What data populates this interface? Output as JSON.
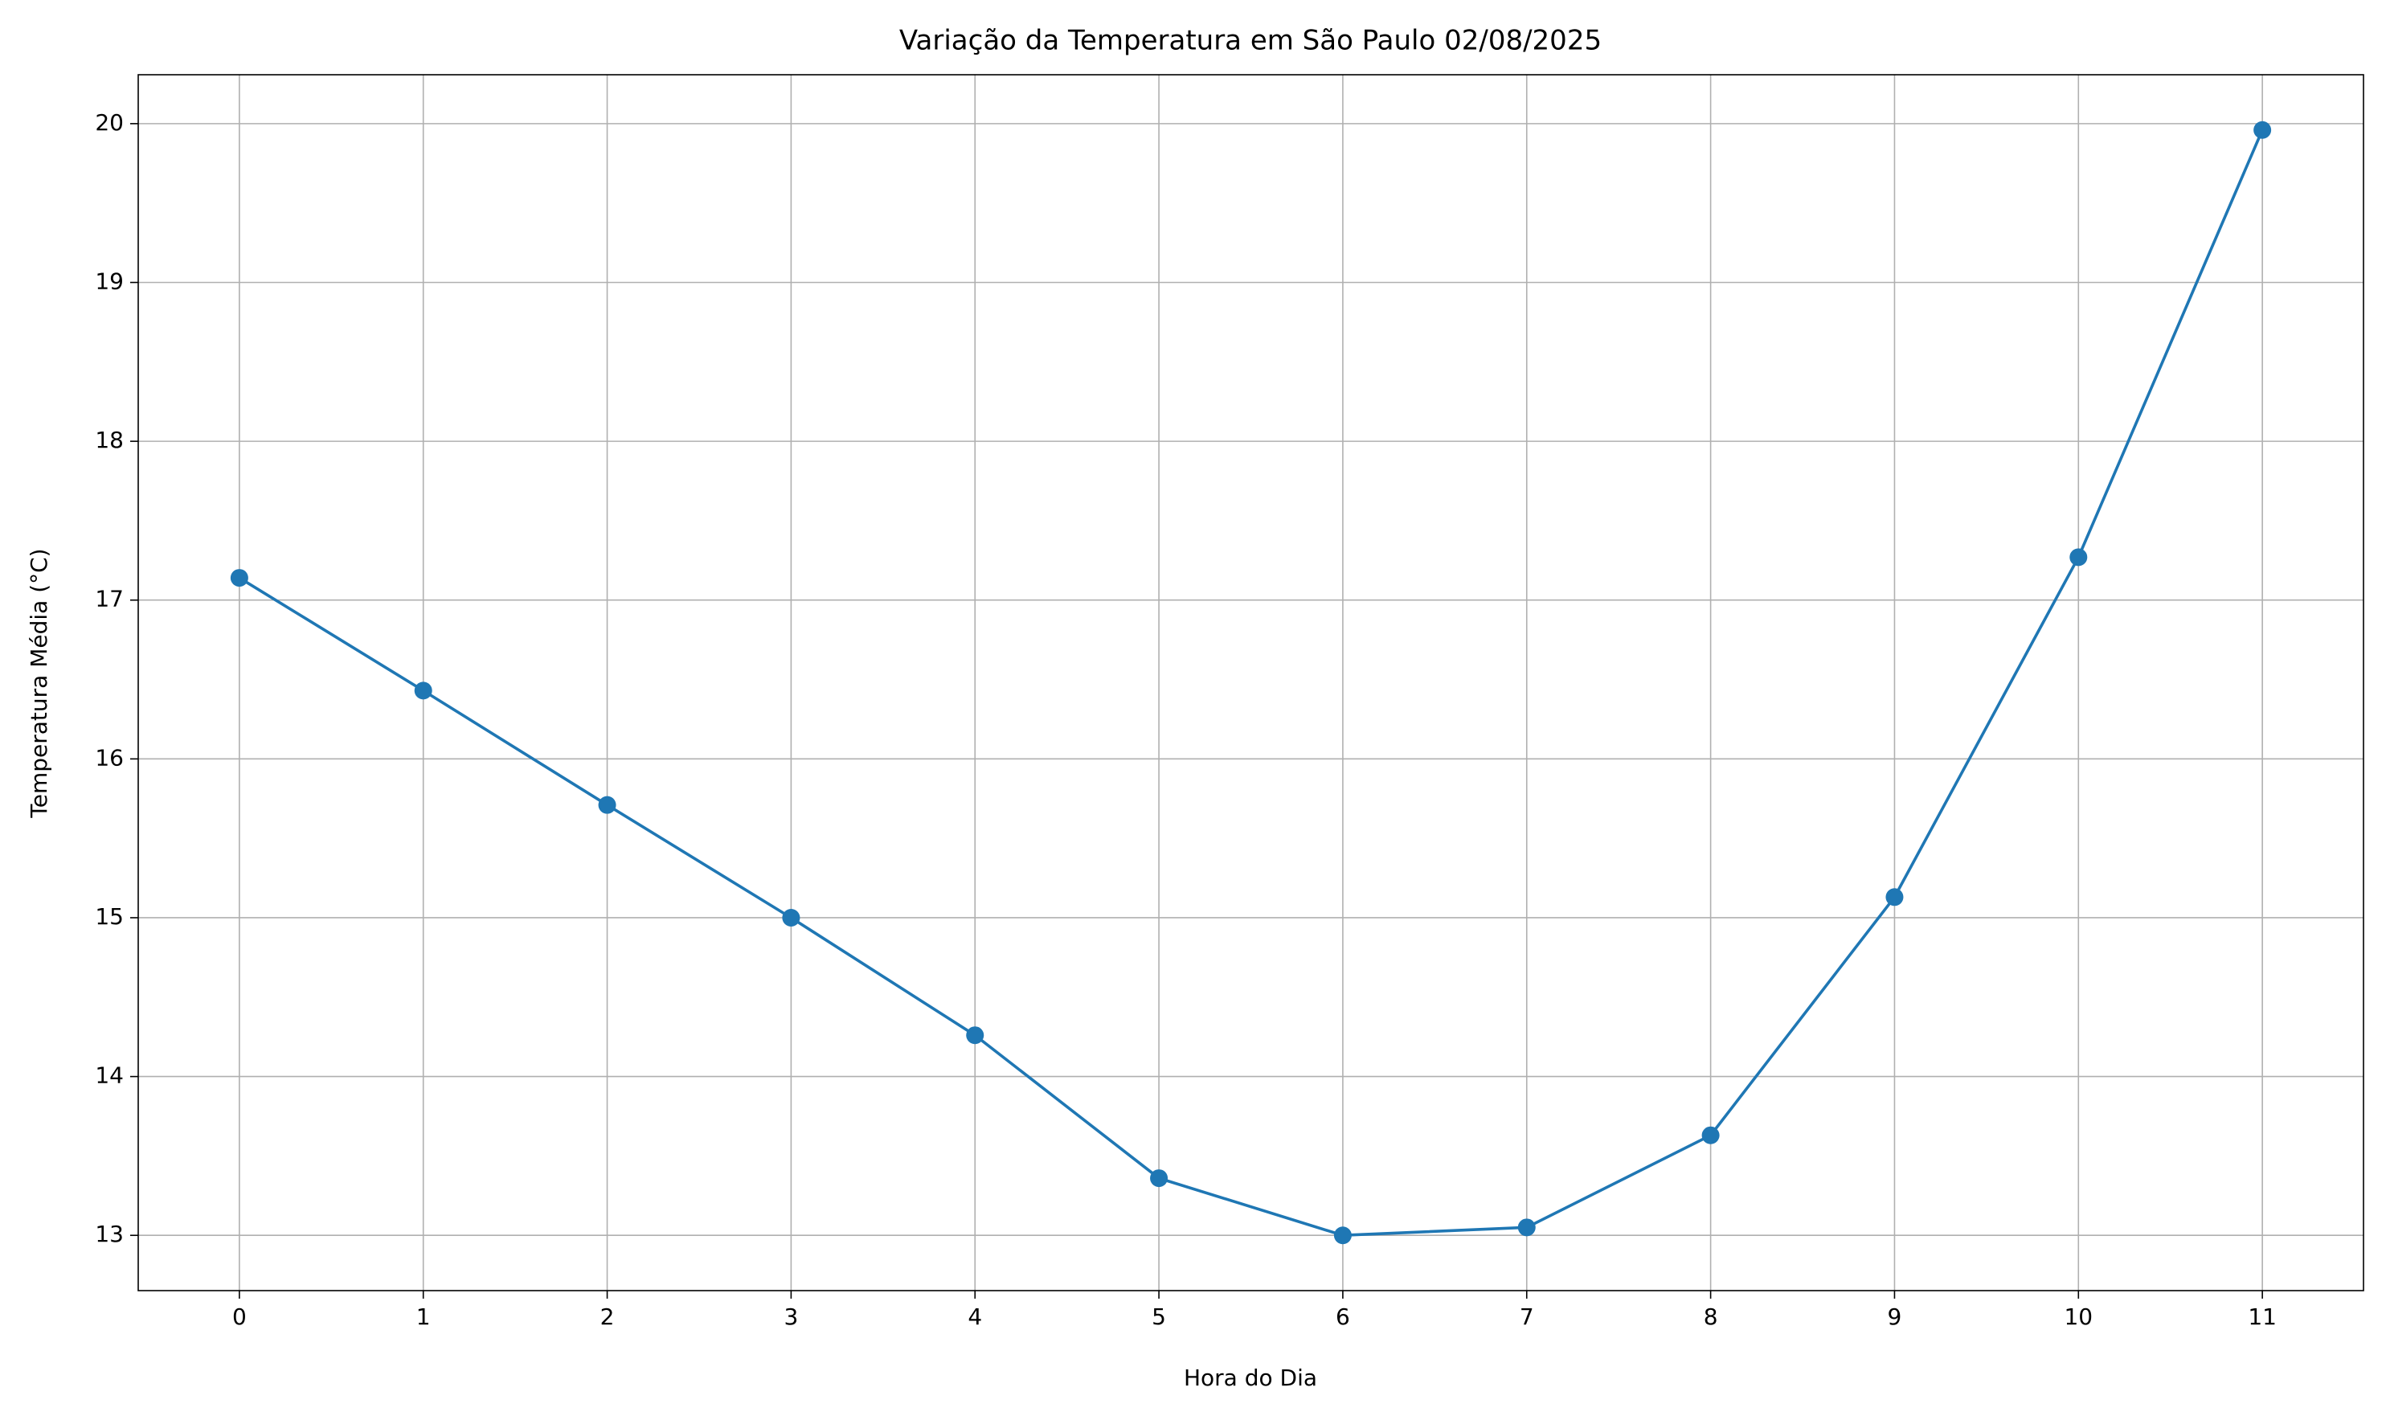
{
  "chart_data": {
    "type": "line",
    "title": "Variação da Temperatura em São Paulo 02/08/2025",
    "x_label": "Hora do Dia",
    "y_label": "Temperatura Média (°C)",
    "x": [
      0,
      1,
      2,
      3,
      4,
      5,
      6,
      7,
      8,
      9,
      10,
      11
    ],
    "series": [
      {
        "color": "#1f77b4",
        "values": [
          17.14,
          16.43,
          15.71,
          15.0,
          14.26,
          13.36,
          13.0,
          13.05,
          13.63,
          15.13,
          17.27,
          19.96
        ]
      }
    ],
    "xlim": [
      -0.55,
      11.55
    ],
    "xticks": [
      0,
      1,
      2,
      3,
      4,
      5,
      6,
      7,
      8,
      9,
      10,
      11
    ],
    "ylim": [
      12.652,
      20.308
    ],
    "yticks": [
      13,
      14,
      15,
      16,
      17,
      18,
      19,
      20
    ],
    "grid": true,
    "markers": true
  }
}
